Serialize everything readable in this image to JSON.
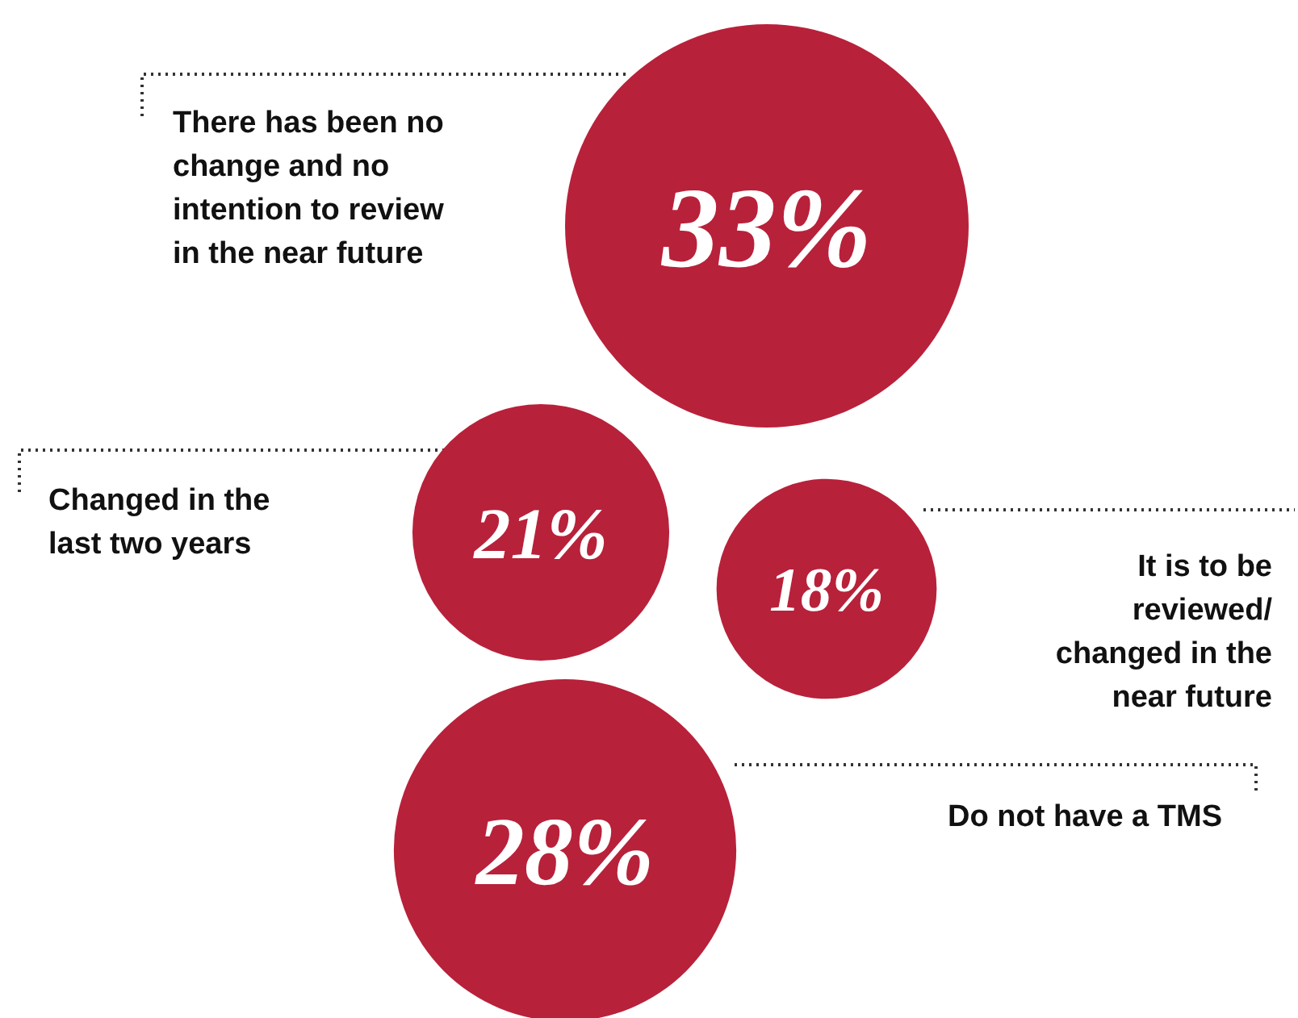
{
  "chart_data": {
    "type": "other",
    "categories": [
      "There has been no change and no intention to review in the near future",
      "Changed in the last two years",
      "It is to be reviewed/ changed in the near future",
      "Do not have a TMS"
    ],
    "values": [
      33,
      21,
      18,
      28
    ],
    "value_labels": [
      "33%",
      "21%",
      "18%",
      "28%"
    ],
    "colors": [
      "#b8213a",
      "#b8213a",
      "#b8213a",
      "#b8213a"
    ]
  }
}
